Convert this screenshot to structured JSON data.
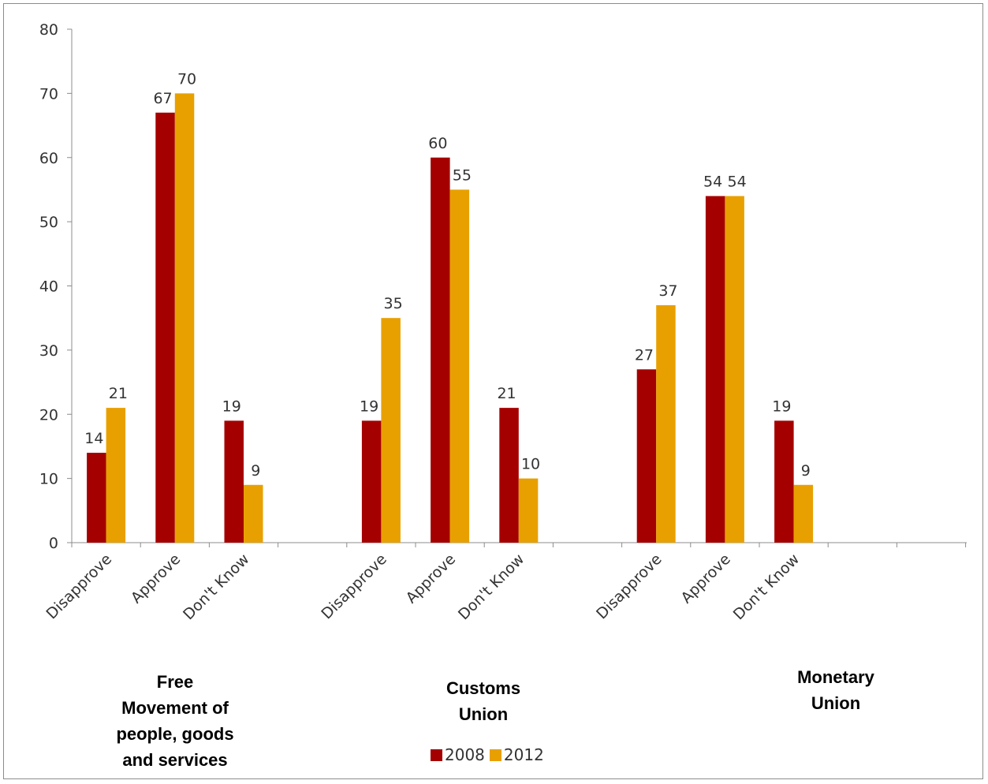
{
  "chart_data": {
    "type": "bar",
    "categories": [
      "Disapprove",
      "Approve",
      "Don't Know",
      "Disapprove",
      "Approve",
      "Don't Know",
      "Disapprove",
      "Approve",
      "Don't Know"
    ],
    "groups": [
      "Free Movement of people, goods and services",
      "Customs Union",
      "Monetary Union"
    ],
    "series": [
      {
        "name": "2008",
        "color": "#a50000",
        "values": [
          14,
          67,
          19,
          19,
          60,
          21,
          27,
          54,
          19
        ]
      },
      {
        "name": "2012",
        "color": "#e8a000",
        "values": [
          21,
          70,
          9,
          35,
          55,
          10,
          37,
          54,
          9
        ]
      }
    ],
    "yticks": [
      0,
      10,
      20,
      30,
      40,
      50,
      60,
      70,
      80
    ],
    "ylim": [
      0,
      80
    ],
    "title": "",
    "xlabel": "",
    "ylabel": "",
    "grid": false,
    "legend": "bottom"
  }
}
